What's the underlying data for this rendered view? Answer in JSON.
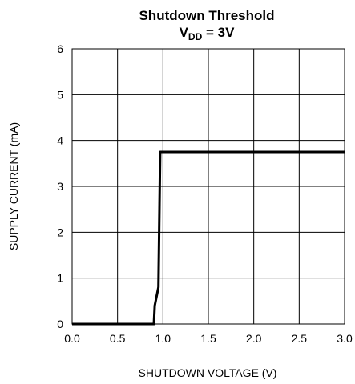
{
  "chart_data": {
    "type": "line",
    "title": "Shutdown Threshold",
    "subtitle": {
      "base": "V",
      "sub": "DD",
      "rest": " = 3V"
    },
    "xlabel": "SHUTDOWN VOLTAGE (V)",
    "ylabel": "SUPPLY CURRENT (mA)",
    "xlim": [
      0,
      3
    ],
    "ylim": [
      0,
      6
    ],
    "x_ticks": [
      "0.0",
      "0.5",
      "1.0",
      "1.5",
      "2.0",
      "2.5",
      "3.0"
    ],
    "y_ticks": [
      "0",
      "1",
      "2",
      "3",
      "4",
      "5",
      "6"
    ],
    "grid": true,
    "series": [
      {
        "color": "#000000",
        "x": [
          0.0,
          0.9,
          0.91,
          0.95,
          0.97,
          3.0
        ],
        "y": [
          0.0,
          0.0,
          0.4,
          0.8,
          3.75,
          3.75
        ]
      }
    ]
  }
}
